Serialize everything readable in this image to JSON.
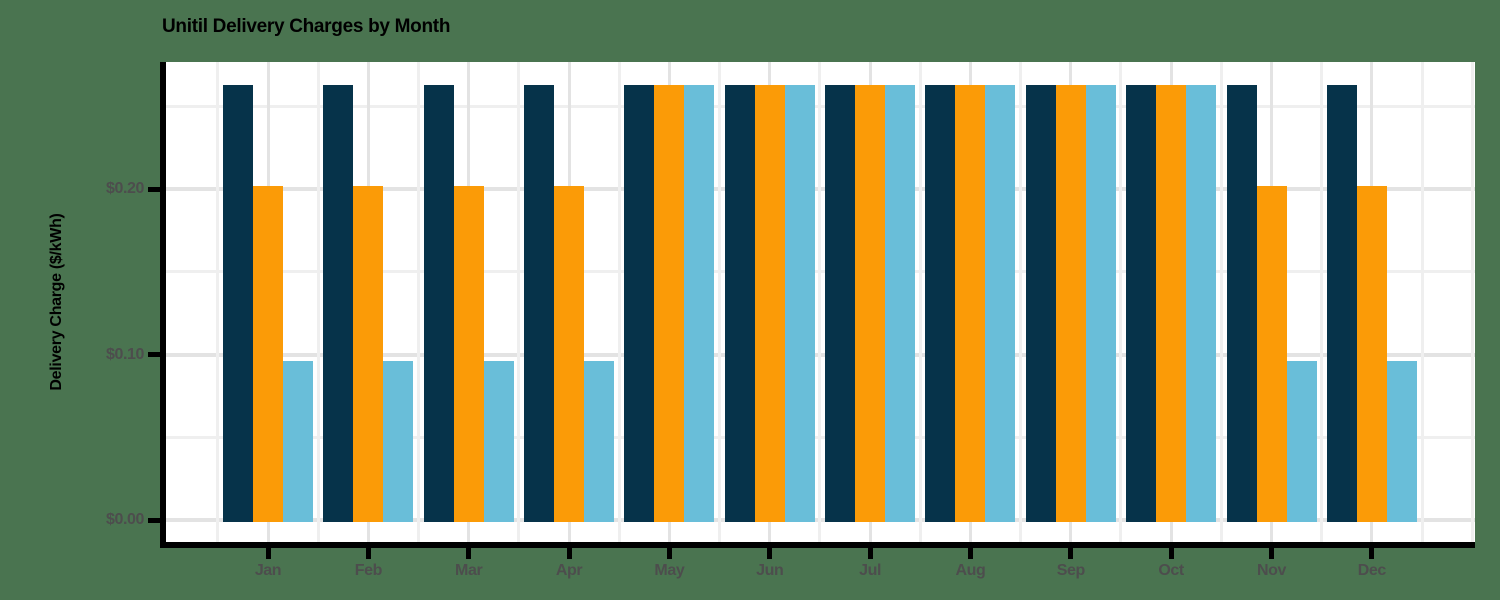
{
  "title": "Unitil Delivery Charges by Month",
  "y_axis": {
    "label": "Delivery Charge ($/kWh)",
    "ticks": [
      {
        "value": 0.0,
        "label": "$0.00"
      },
      {
        "value": 0.1,
        "label": "$0.10"
      },
      {
        "value": 0.2,
        "label": "$0.20"
      }
    ]
  },
  "x_axis": {
    "tick_labels": [
      "Jan",
      "Feb",
      "Mar",
      "Apr",
      "May",
      "Jun",
      "Jul",
      "Aug",
      "Sep",
      "Oct",
      "Nov",
      "Dec"
    ]
  },
  "colors": {
    "background": "#4a7450",
    "panel_background": "#ffffff",
    "bar_navy": "#06334a",
    "bar_orange": "#fb9b07",
    "bar_light_blue": "#69bed9",
    "grid_major": "#e3e3e3",
    "grid_minor": "#efefef",
    "axis_spine": "#000000",
    "tick_mark": "#000000",
    "tick_text": "#4d4d4d",
    "title_text": "#000000"
  },
  "chart_data": {
    "type": "bar",
    "title": "Unitil Delivery Charges by Month",
    "xlabel": "",
    "ylabel": "Delivery Charge ($/kWh)",
    "categories": [
      "Jan",
      "Feb",
      "Mar",
      "Apr",
      "May",
      "Jun",
      "Jul",
      "Aug",
      "Sep",
      "Oct",
      "Nov",
      "Dec"
    ],
    "series": [
      {
        "name": "dark-navy-bars",
        "color": "#06334a",
        "values": [
          0.263,
          0.263,
          0.263,
          0.263,
          0.263,
          0.263,
          0.263,
          0.263,
          0.263,
          0.263,
          0.263,
          0.263
        ]
      },
      {
        "name": "orange-bars",
        "color": "#fb9b07",
        "values": [
          0.202,
          0.202,
          0.202,
          0.202,
          0.263,
          0.263,
          0.263,
          0.263,
          0.263,
          0.263,
          0.202,
          0.202
        ]
      },
      {
        "name": "light-blue-bars",
        "color": "#69bed9",
        "values": [
          0.096,
          0.096,
          0.096,
          0.096,
          0.263,
          0.263,
          0.263,
          0.263,
          0.263,
          0.263,
          0.096,
          0.096
        ]
      }
    ],
    "ylim": [
      -0.013,
      0.277
    ],
    "y_tick_values": [
      0.0,
      0.1,
      0.2
    ],
    "y_tick_labels": [
      "$0.00",
      "$0.10",
      "$0.20"
    ],
    "y_major_gridlines": [
      0.0,
      0.1,
      0.2
    ],
    "y_minor_gridlines": [
      0.05,
      0.15,
      0.25
    ],
    "grid": true,
    "legend_position": "none"
  }
}
